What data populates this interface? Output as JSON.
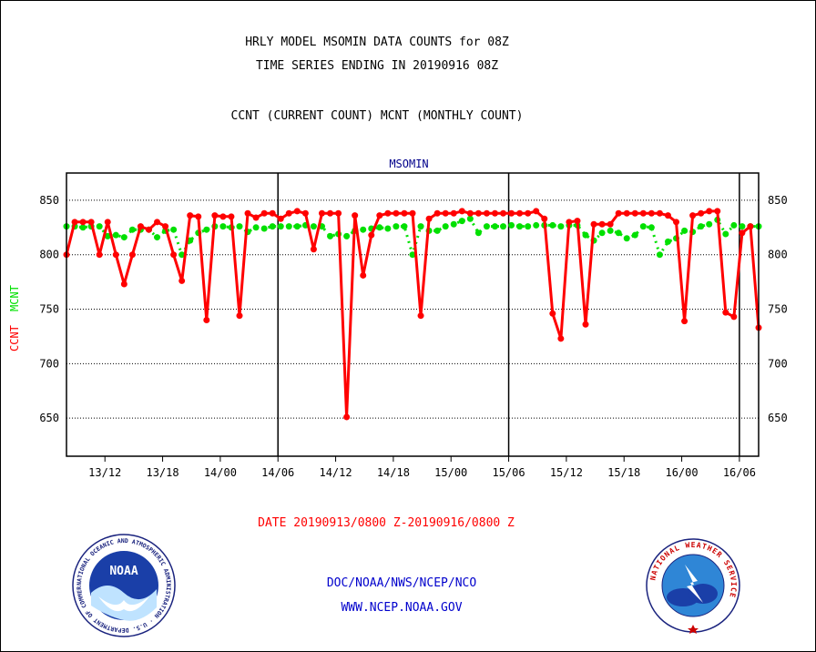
{
  "header": {
    "line1": "HRLY MODEL MSOMIN DATA COUNTS for 08Z",
    "line2": "TIME SERIES ENDING IN 20190916 08Z",
    "line3": "CCNT (CURRENT COUNT) MCNT (MONTHLY COUNT)"
  },
  "footer": {
    "date_range": "DATE 20190913/0800 Z-20190916/0800 Z",
    "org": "DOC/NOAA/NWS/NCEP/NCO",
    "url": "WWW.NCEP.NOAA.GOV"
  },
  "logos": {
    "left_name": "NOAA",
    "left_ring": "NATIONAL OCEANIC AND ATMOSPHERIC ADMINISTRATION · U.S. DEPARTMENT OF COMMERCE ·",
    "right_ring": "NATIONAL WEATHER SERVICE"
  },
  "colors": {
    "ccnt": "#ff0000",
    "mcnt": "#00e000",
    "title": "#00008b",
    "text": "#000000"
  },
  "chart_data": {
    "type": "line",
    "title": "MSOMIN",
    "ylabel_ccnt": "CCNT",
    "ylabel_mcnt": "MCNT",
    "ylim": [
      615,
      875
    ],
    "yticks": [
      650,
      700,
      750,
      800,
      850
    ],
    "grid": true,
    "x_start": "2019-09-13 08Z",
    "x_end": "2019-09-16 08Z",
    "xticks": [
      "13/12",
      "13/18",
      "14/00",
      "14/06",
      "14/12",
      "14/18",
      "15/00",
      "15/06",
      "15/12",
      "15/18",
      "16/00",
      "16/06"
    ],
    "day_boundaries": [
      "14/06",
      "15/06",
      "16/06"
    ],
    "series": [
      {
        "name": "CCNT",
        "values": [
          800,
          830,
          830,
          830,
          800,
          830,
          800,
          773,
          800,
          826,
          823,
          830,
          826,
          800,
          776,
          836,
          835,
          740,
          836,
          835,
          835,
          744,
          838,
          834,
          838,
          838,
          833,
          838,
          840,
          838,
          805,
          838,
          838,
          838,
          651,
          836,
          781,
          818,
          836,
          838,
          838,
          838,
          838,
          744,
          833,
          838,
          838,
          838,
          840,
          838,
          838,
          838,
          838,
          838,
          838,
          838,
          838,
          840,
          833,
          746,
          723,
          830,
          831,
          736,
          828,
          828,
          828,
          838,
          838,
          838,
          838,
          838,
          838,
          836,
          830,
          739,
          836,
          838,
          840,
          840,
          747,
          743,
          820,
          826,
          733
        ]
      },
      {
        "name": "MCNT",
        "values": [
          826,
          826,
          825,
          826,
          826,
          817,
          818,
          816,
          823,
          823,
          823,
          816,
          822,
          823,
          800,
          813,
          820,
          823,
          826,
          826,
          825,
          826,
          821,
          825,
          824,
          826,
          826,
          826,
          826,
          827,
          826,
          826,
          817,
          819,
          817,
          822,
          823,
          824,
          825,
          824,
          826,
          826,
          800,
          826,
          822,
          822,
          826,
          828,
          831,
          833,
          820,
          826,
          826,
          826,
          827,
          826,
          826,
          827,
          827,
          827,
          826,
          827,
          827,
          818,
          813,
          820,
          822,
          820,
          815,
          818,
          826,
          825,
          800,
          812,
          815,
          822,
          821,
          826,
          828,
          832,
          819,
          827,
          826,
          826,
          826
        ]
      }
    ]
  }
}
